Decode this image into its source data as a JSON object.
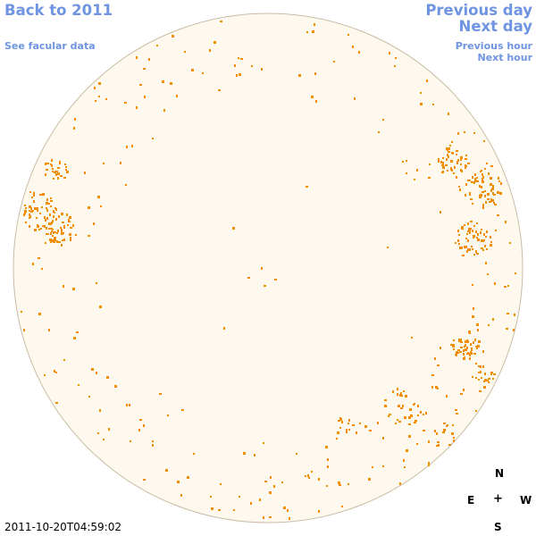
{
  "nav": {
    "back_label": "Back to 2011",
    "facular_label": "See facular data",
    "prev_day_label": "Previous day",
    "next_day_label": "Next day",
    "prev_hour_label": "Previous hour",
    "next_hour_label": "Next hour"
  },
  "compass": {
    "north": "N",
    "east": "E",
    "center": "+",
    "west": "W",
    "south": "S"
  },
  "timestamp": "2011-10-20T04:59:02",
  "colors": {
    "link": "#6f94e2",
    "disk_fill": "#fef9ef",
    "disk_edge": "#c9bca6",
    "facula": "#f38d00"
  }
}
